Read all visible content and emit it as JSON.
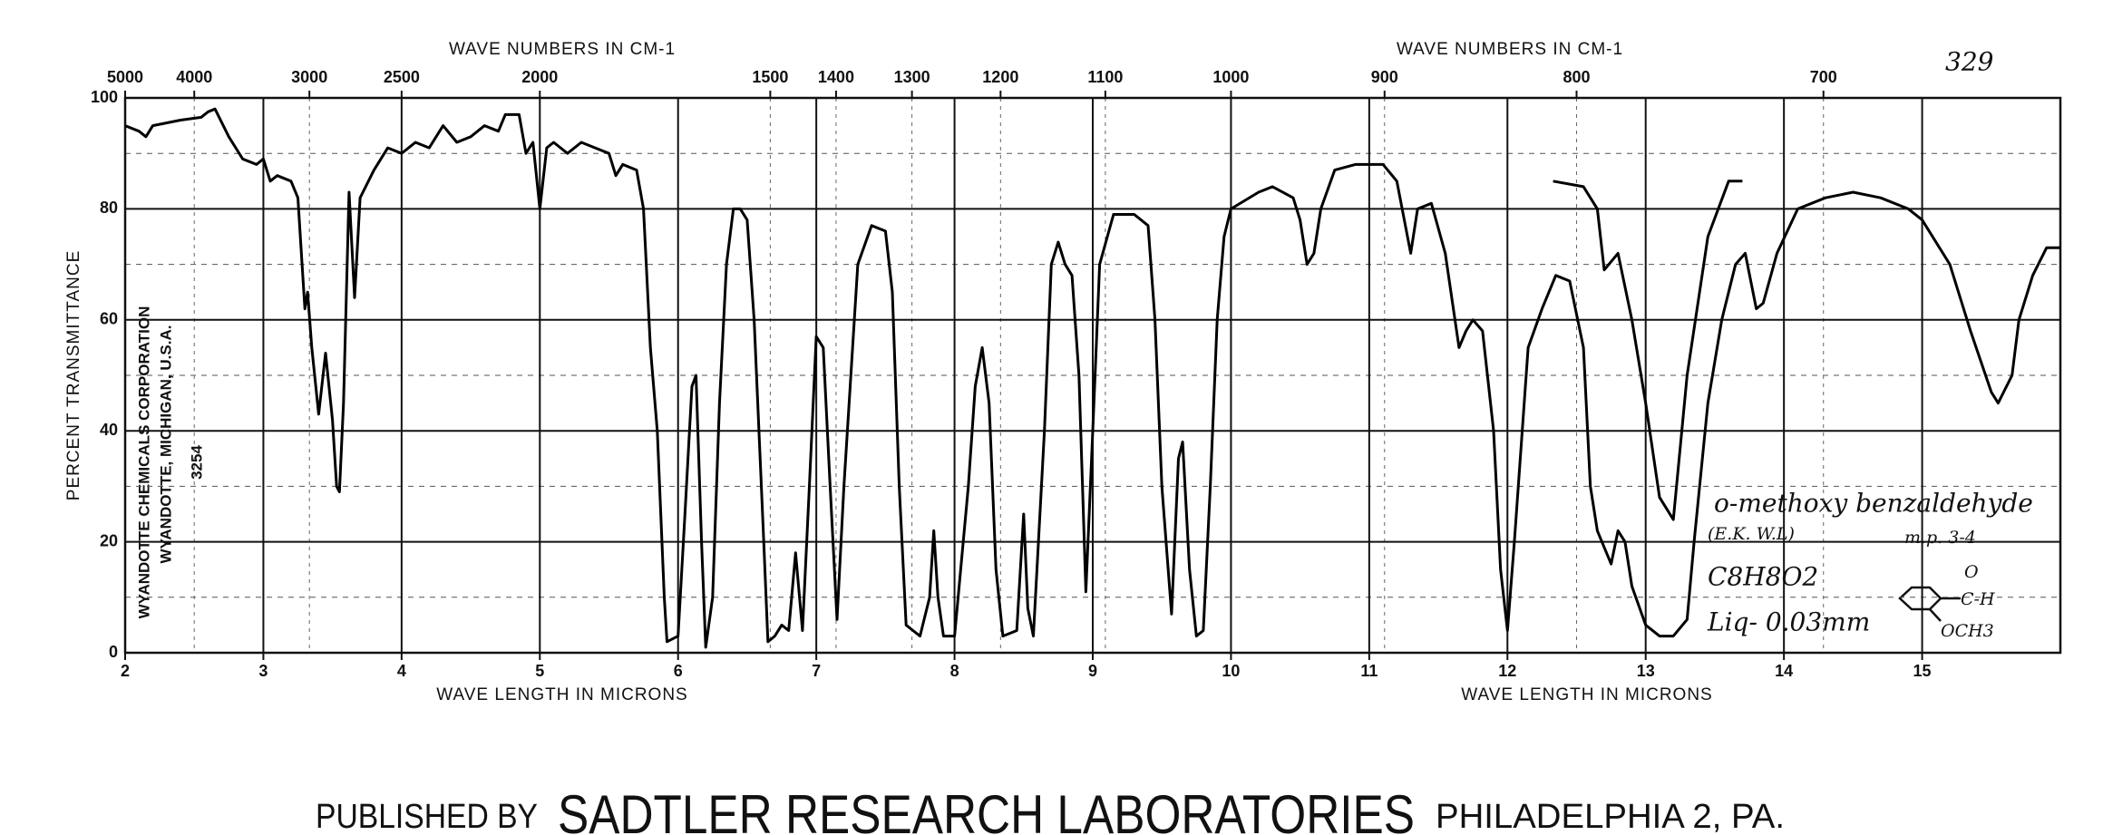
{
  "chart_data": {
    "type": "line",
    "x_label_top": "WAVE NUMBERS IN CM-1",
    "x_label": "WAVE LENGTH IN MICRONS",
    "y_label": "PERCENT TRANSMITTANCE",
    "annotations": {
      "number": "329",
      "corporation": "WYANDOTTE CHEMICALS CORPORATION",
      "location": "WYANDOTTE, MICHIGAN, U.S.A.",
      "code": "3254",
      "compound": "o-methoxy benzaldehyde",
      "source": "(E.K. W.L)",
      "melting_point": "m.p. 3-4",
      "formula": "C8H8O2",
      "sample": "Liq- 0.03mm",
      "group_top": "O",
      "group_mid": "C-H",
      "group_bottom": "OCH3"
    },
    "footer": {
      "left": "PUBLISHED BY",
      "center": "SADTLER RESEARCH LABORATORIES",
      "right": "PHILADELPHIA 2, PA."
    },
    "xlim": [
      2,
      16
    ],
    "ylim": [
      0,
      100
    ],
    "xticks": [
      2,
      3,
      4,
      5,
      6,
      7,
      8,
      9,
      10,
      11,
      12,
      13,
      14,
      15
    ],
    "yticks": [
      0,
      20,
      40,
      60,
      80,
      100
    ],
    "yminorticks": [
      10,
      30,
      50,
      70,
      90
    ],
    "x2ticks": [
      {
        "value": 2,
        "label": "5000"
      },
      {
        "value": 2.5,
        "label": "4000"
      },
      {
        "value": 3.333,
        "label": "3000"
      },
      {
        "value": 4,
        "label": "2500"
      },
      {
        "value": 5,
        "label": "2000"
      },
      {
        "value": 6.667,
        "label": "1500"
      },
      {
        "value": 7.143,
        "label": "1400"
      },
      {
        "value": 7.692,
        "label": "1300"
      },
      {
        "value": 8.333,
        "label": "1200"
      },
      {
        "value": 9.091,
        "label": "1100"
      },
      {
        "value": 10,
        "label": "1000"
      },
      {
        "value": 11.111,
        "label": "900"
      },
      {
        "value": 12.5,
        "label": "800"
      },
      {
        "value": 14.286,
        "label": "700"
      }
    ],
    "grid": true,
    "series": [
      {
        "color": "#000000",
        "x": [
          2.0,
          2.1,
          2.15,
          2.2,
          2.4,
          2.55,
          2.6,
          2.65,
          2.75,
          2.85,
          2.95,
          3.0,
          3.05,
          3.1,
          3.2,
          3.25,
          3.28,
          3.3,
          3.32,
          3.35,
          3.4,
          3.45,
          3.5,
          3.53,
          3.55,
          3.58,
          3.62,
          3.66,
          3.7,
          3.8,
          3.9,
          4.0,
          4.1,
          4.2,
          4.3,
          4.4,
          4.5,
          4.6,
          4.7,
          4.75,
          4.85,
          4.9,
          4.95,
          5.0,
          5.05,
          5.1,
          5.2,
          5.3,
          5.4,
          5.5,
          5.55,
          5.6,
          5.7,
          5.75,
          5.8,
          5.85,
          5.9,
          5.92,
          6.0,
          6.05,
          6.1,
          6.13,
          6.17,
          6.2,
          6.25,
          6.3,
          6.35,
          6.4,
          6.45,
          6.5,
          6.55,
          6.62,
          6.65,
          6.7,
          6.75,
          6.8,
          6.85,
          6.9,
          6.95,
          7.0,
          7.05,
          7.1,
          7.15,
          7.2,
          7.3,
          7.4,
          7.5,
          7.55,
          7.6,
          7.65,
          7.7,
          7.75,
          7.82,
          7.85,
          7.88,
          7.92,
          8.0,
          8.1,
          8.15,
          8.2,
          8.25,
          8.3,
          8.35,
          8.45,
          8.5,
          8.53,
          8.57,
          8.65,
          8.7,
          8.75,
          8.8,
          8.85,
          8.9,
          8.95,
          9.0,
          9.05,
          9.15,
          9.3,
          9.4,
          9.45,
          9.5,
          9.57,
          9.62,
          9.65,
          9.7,
          9.75,
          9.8,
          9.85,
          9.9,
          9.95,
          10.0,
          10.2,
          10.3,
          10.45,
          10.5,
          10.55,
          10.6,
          10.65,
          10.75,
          10.9,
          11.1,
          11.2,
          11.3,
          11.35,
          11.45,
          11.55,
          11.65,
          11.7,
          11.75,
          11.82,
          11.9,
          11.95,
          12.0,
          12.05,
          12.15,
          12.25,
          12.35,
          12.45,
          12.55,
          12.6,
          12.65,
          12.75,
          12.8,
          12.85,
          12.9,
          13.0,
          13.1,
          13.2,
          13.3,
          13.35,
          13.45,
          13.55,
          13.65,
          13.72,
          13.8,
          13.85,
          13.95,
          14.1,
          14.3,
          14.5,
          14.7,
          14.9,
          15.0,
          15.2,
          15.35,
          15.5,
          15.55,
          15.65,
          15.7,
          15.8,
          15.9,
          16.0
        ],
        "values": [
          95,
          94,
          93,
          95,
          96,
          96.5,
          97.5,
          98,
          93,
          89,
          88,
          89,
          85,
          86,
          85,
          82,
          70,
          62,
          65,
          55,
          43,
          54,
          42,
          30,
          29,
          45,
          83,
          64,
          82,
          87,
          91,
          90,
          92,
          91,
          95,
          92,
          93,
          95,
          94,
          97,
          97,
          90,
          92,
          80,
          91,
          92,
          90,
          92,
          91,
          90,
          86,
          88,
          87,
          80,
          55,
          40,
          10,
          2,
          3,
          25,
          48,
          50,
          20,
          1,
          10,
          45,
          70,
          80,
          80,
          78,
          60,
          20,
          2,
          3,
          5,
          4,
          18,
          4,
          30,
          57,
          55,
          30,
          6,
          30,
          70,
          77,
          76,
          65,
          30,
          5,
          4,
          3,
          10,
          22,
          10,
          3,
          3,
          30,
          48,
          55,
          45,
          15,
          3,
          4,
          25,
          8,
          3,
          40,
          70,
          74,
          70,
          68,
          50,
          11,
          40,
          70,
          79,
          79,
          77,
          60,
          30,
          7,
          35,
          38,
          15,
          3,
          4,
          30,
          60,
          75,
          80,
          83,
          84,
          82,
          78,
          70,
          72,
          80,
          87,
          88,
          88,
          85,
          72,
          80,
          81,
          72,
          55,
          58,
          60,
          58,
          40,
          15,
          4,
          20,
          55,
          62,
          68,
          67,
          55,
          30,
          22,
          16,
          22,
          20,
          12,
          5,
          3,
          3,
          6,
          20,
          45,
          60,
          70,
          72,
          62,
          63,
          72,
          80,
          82,
          83,
          82,
          80,
          78,
          70,
          58,
          47,
          45,
          50,
          60,
          68,
          73,
          73
        ]
      },
      {
        "color": "#000000",
        "x": [
          12.33,
          12.55,
          12.65,
          12.7,
          12.8,
          12.9,
          13.0,
          13.1,
          13.2,
          13.3,
          13.45,
          13.6,
          13.7
        ],
        "values": [
          85,
          84,
          80,
          69,
          72,
          60,
          45,
          28,
          24,
          50,
          75,
          85,
          85
        ]
      }
    ]
  }
}
